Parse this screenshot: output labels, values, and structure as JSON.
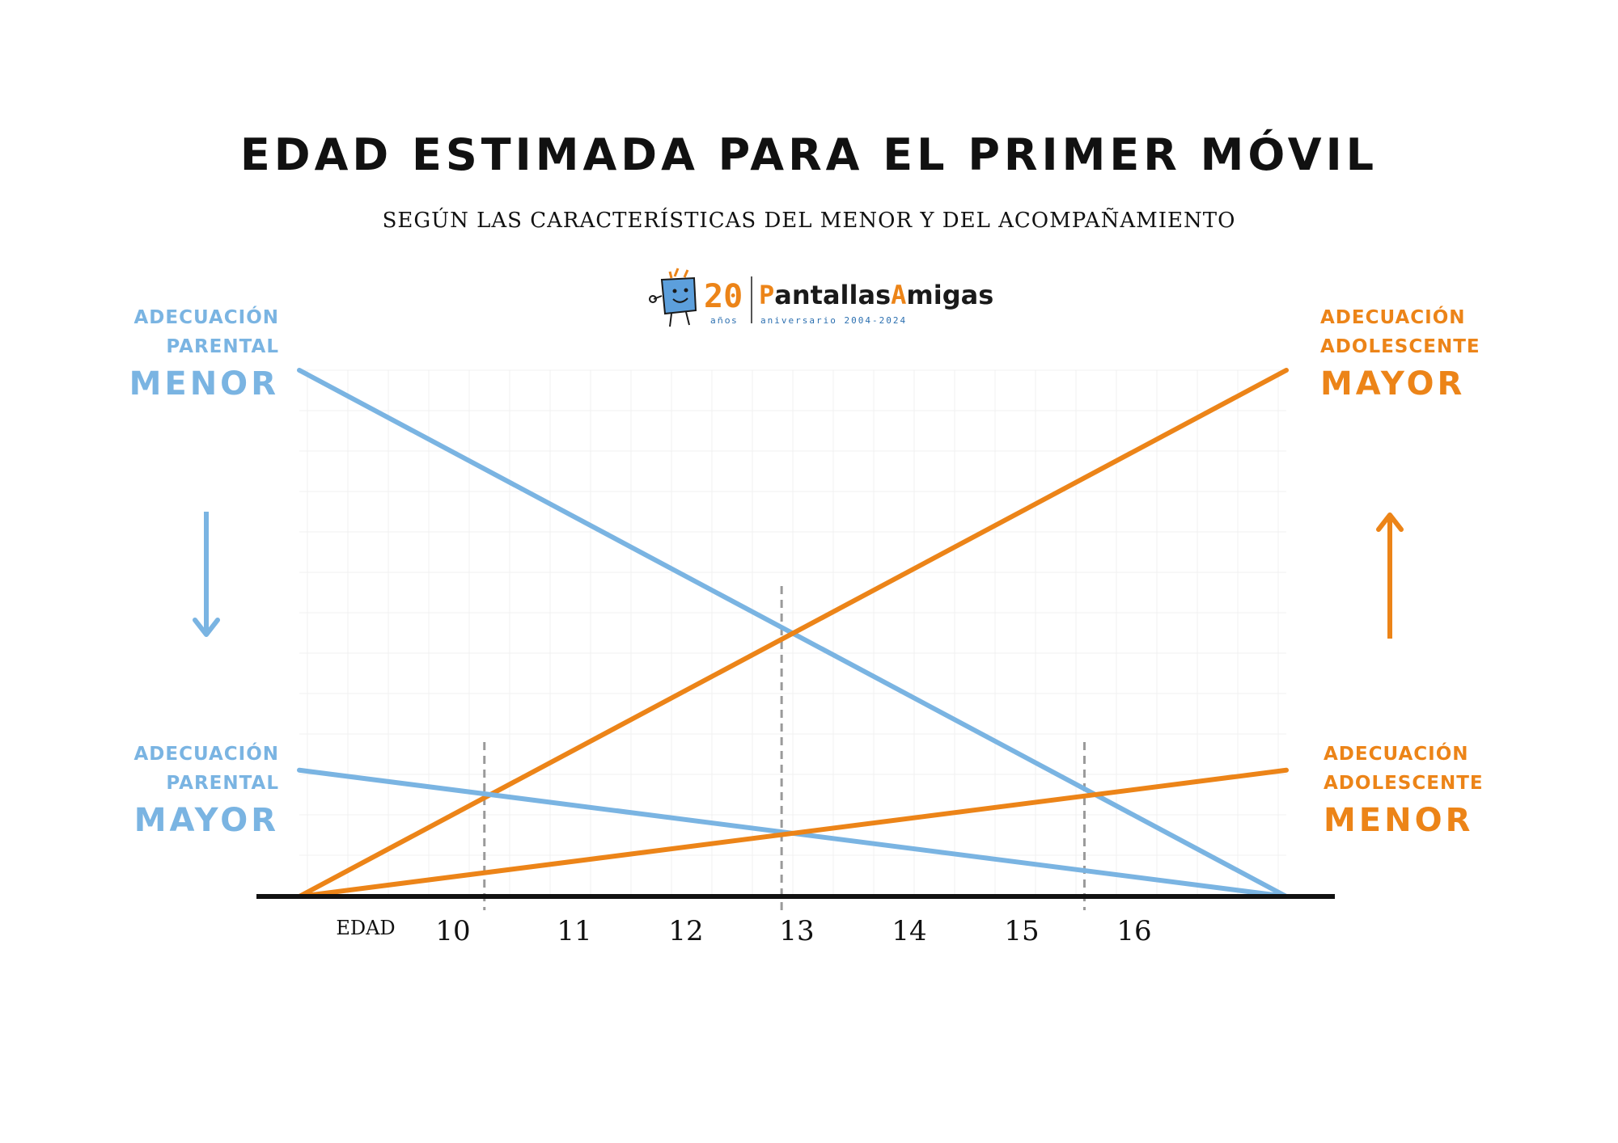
{
  "title": "EDAD ESTIMADA PARA EL PRIMER MÓVIL",
  "subtitle": "SEGÚN LAS CARACTERÍSTICAS DEL MENOR Y DEL ACOMPAÑAMIENTO",
  "logo": {
    "number": "20",
    "years": "años",
    "name_a": "P",
    "name_b": "antallas",
    "name_c": "A",
    "name_d": "migas",
    "tagline": "aniversario 2004-2024"
  },
  "left_top": {
    "line1": "ADECUACIÓN",
    "line2": "PARENTAL",
    "big": "MENOR"
  },
  "left_bottom": {
    "line1": "ADECUACIÓN",
    "line2": "PARENTAL",
    "big": "MAYOR"
  },
  "right_top": {
    "line1": "ADECUACIÓN",
    "line2": "ADOLESCENTE",
    "big": "MAYOR"
  },
  "right_bottom": {
    "line1": "ADECUACIÓN",
    "line2": "ADOLESCENTE",
    "big": "MENOR"
  },
  "colors": {
    "blue": "#7ab4e2",
    "orange": "#ec8418",
    "axis": "#111111",
    "guide": "#9a9a9a",
    "grid": "#f1f1f1"
  },
  "chart_data": {
    "type": "line",
    "xlabel": "EDAD",
    "x_ticks": [
      10,
      11,
      12,
      13,
      14,
      15,
      16
    ],
    "xlim": [
      8.7,
      17.5
    ],
    "ylim": [
      0,
      1
    ],
    "grid": true,
    "series": [
      {
        "color": "#7ab4e2",
        "x": [
          8.7,
          17.5
        ],
        "y": [
          1.0,
          0.0
        ]
      },
      {
        "color": "#ec8418",
        "x": [
          8.7,
          17.5
        ],
        "y": [
          0.0,
          1.0
        ]
      },
      {
        "color": "#7ab4e2",
        "x": [
          8.7,
          17.5
        ],
        "y": [
          0.24,
          0.0
        ]
      },
      {
        "color": "#ec8418",
        "x": [
          8.7,
          17.5
        ],
        "y": [
          0.0,
          0.24
        ]
      }
    ],
    "guides": [
      10.35,
      13.0,
      15.7
    ]
  }
}
